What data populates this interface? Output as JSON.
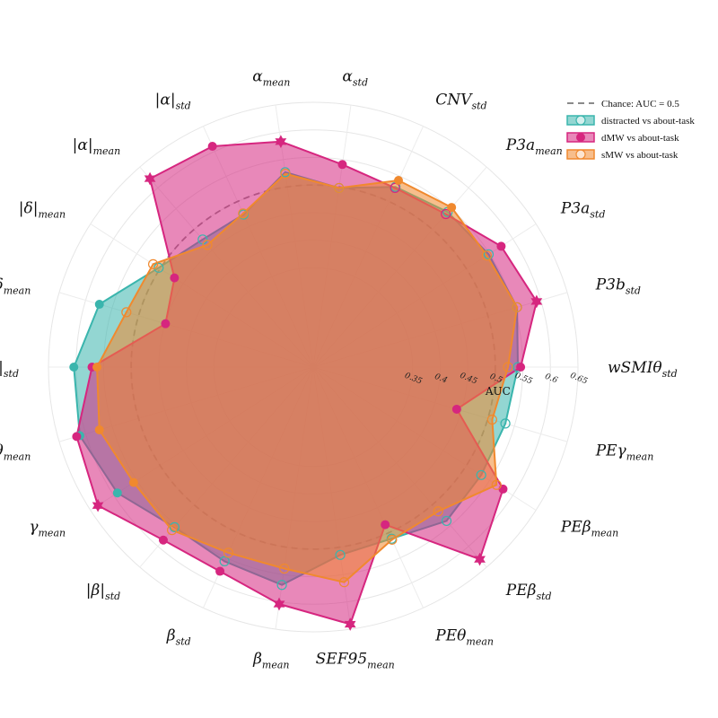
{
  "chart_data": {
    "type": "radar",
    "radial_label": "AUC",
    "rlim": [
      0.3,
      0.65
    ],
    "rticks": [
      "0.35",
      "0.4",
      "0.45",
      "0.5",
      "0.55",
      "0.6",
      "0.65"
    ],
    "grid": true,
    "legend_position": "top-right",
    "chance": {
      "label": "Chance: AUC = 0.5",
      "value": 0.5
    },
    "axes": [
      {
        "base": "wSMIθ",
        "sub": "std"
      },
      {
        "base": "P3b",
        "sub": "std"
      },
      {
        "base": "P3a",
        "sub": "std"
      },
      {
        "base": "P3a",
        "sub": "mean"
      },
      {
        "base": "CNV",
        "sub": "std"
      },
      {
        "base": "α",
        "sub": "std"
      },
      {
        "base": "α",
        "sub": "mean"
      },
      {
        "base": "|α|",
        "sub": "std"
      },
      {
        "base": "|α|",
        "sub": "mean"
      },
      {
        "base": "|δ|",
        "sub": "mean"
      },
      {
        "base": "δ",
        "sub": "mean"
      },
      {
        "base": "|θ|",
        "sub": "std"
      },
      {
        "base": "θ",
        "sub": "mean"
      },
      {
        "base": "γ",
        "sub": "mean"
      },
      {
        "base": "|β|",
        "sub": "std"
      },
      {
        "base": "β",
        "sub": "std"
      },
      {
        "base": "β",
        "sub": "mean"
      },
      {
        "base": "SEF95",
        "sub": "mean"
      },
      {
        "base": "PEθ",
        "sub": "mean"
      },
      {
        "base": "PEβ",
        "sub": "std"
      },
      {
        "base": "PEβ",
        "sub": "mean"
      },
      {
        "base": "PEγ",
        "sub": "mean"
      }
    ],
    "series": [
      {
        "name": "distracted vs about-task",
        "color": "#3ab5ad",
        "values": [
          0.541,
          0.555,
          0.548,
          0.542,
          0.529,
          0.498,
          0.527,
          0.474,
          0.476,
          0.503,
          0.574,
          0.604,
          0.611,
          0.592,
          0.554,
          0.557,
          0.569,
          0.514,
          0.512,
          0.539,
          0.532,
          0.533
        ],
        "markers": [
          "ring",
          "ring",
          "ring",
          "ring",
          "ring",
          "ring",
          "ring",
          "ring",
          "ring",
          "ring",
          "filled",
          "filled",
          "filled",
          "filled",
          "ring",
          "ring",
          "ring",
          "ring",
          "ring",
          "ring",
          "ring",
          "ring"
        ]
      },
      {
        "name": "dMW vs about-task",
        "color": "#d6267f",
        "values": [
          0.546,
          0.592,
          0.575,
          0.537,
          0.527,
          0.541,
          0.583,
          0.61,
          0.622,
          0.469,
          0.449,
          0.571,
          0.617,
          0.634,
          0.585,
          0.577,
          0.604,
          0.641,
          0.484,
          0.631,
          0.579,
          0.441
        ],
        "markers": [
          "filled",
          "star",
          "filled",
          "ring",
          "ring",
          "filled",
          "star",
          "filled",
          "star",
          "filled",
          "filled",
          "filled",
          "filled",
          "star",
          "filled",
          "filled",
          "star",
          "star",
          "filled",
          "star",
          "filled",
          "filled"
        ]
      },
      {
        "name": "sMW vs about-task",
        "color": "#f0892e",
        "values": [
          0.523,
          0.555,
          0.544,
          0.553,
          0.542,
          0.498,
          0.524,
          0.476,
          0.463,
          0.515,
          0.523,
          0.562,
          0.574,
          0.557,
          0.561,
          0.54,
          0.539,
          0.564,
          0.514,
          0.516,
          0.565,
          0.508
        ],
        "markers": [
          "ring",
          "ring",
          "ring",
          "filled",
          "filled",
          "ring",
          "ring",
          "ring",
          "ring",
          "ring",
          "ring",
          "filled",
          "filled",
          "filled",
          "ring",
          "ring",
          "ring",
          "ring",
          "ring",
          "ring",
          "ring",
          "ring"
        ]
      }
    ]
  }
}
